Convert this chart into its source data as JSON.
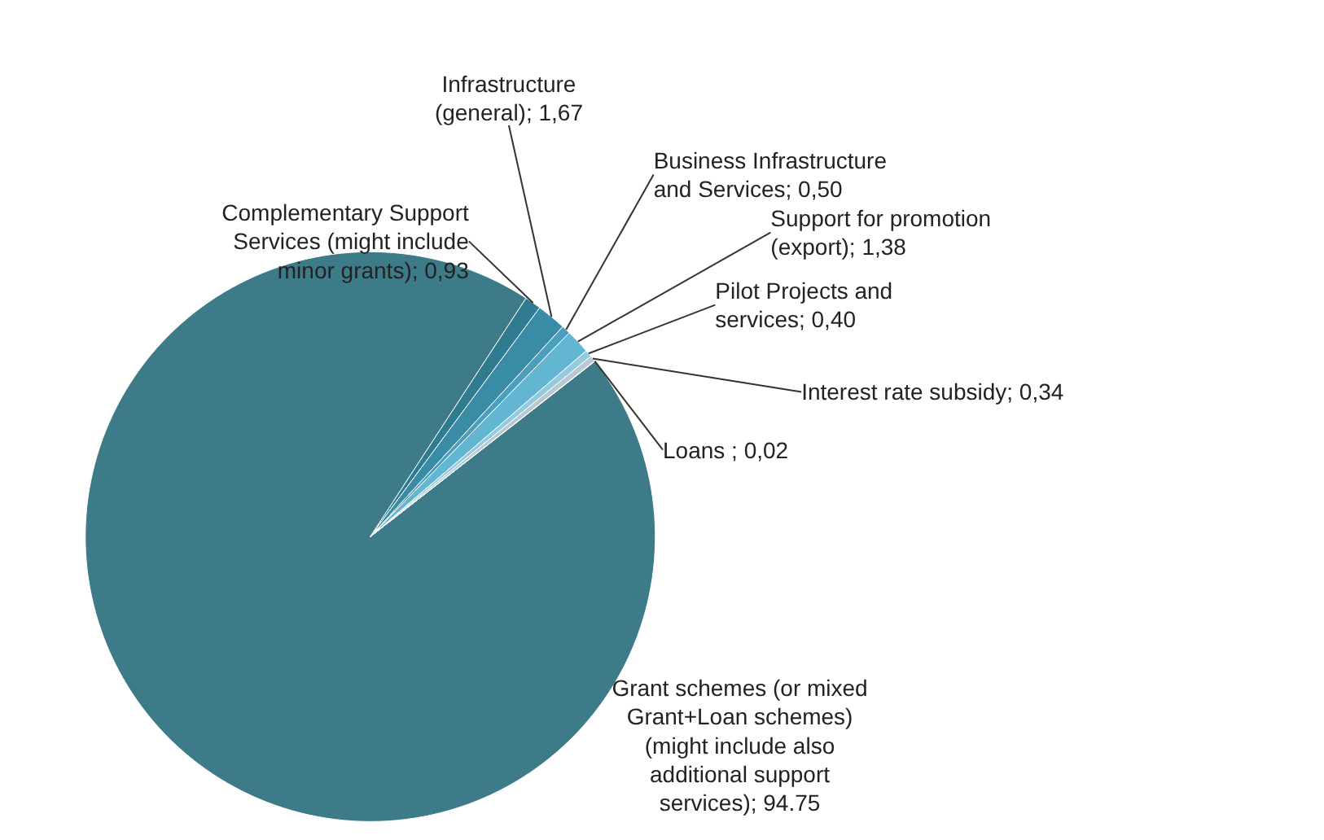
{
  "chart_data": {
    "type": "pie",
    "categories": [
      "Grant schemes (or mixed Grant+Loan schemes) (might include also additional support services)",
      "Complementary Support Services (might include minor grants)",
      "Infrastructure (general)",
      "Business Infrastructure and Services",
      "Support for promotion (export)",
      "Pilot Projects and services",
      "Interest rate subsidy",
      "Loans "
    ],
    "values": [
      94.75,
      0.93,
      1.67,
      0.5,
      1.38,
      0.4,
      0.34,
      0.02
    ],
    "value_labels": [
      "94.75",
      "0,93",
      "1,67",
      "0,50",
      "1,38",
      "0,40",
      "0,34",
      "0,02"
    ],
    "colors": [
      "#3d7b88",
      "#2f7c90",
      "#3a8ca6",
      "#4c9fbc",
      "#62b6d2",
      "#93cade",
      "#b9c9d1",
      "#9aaeb7"
    ],
    "legend": false
  }
}
